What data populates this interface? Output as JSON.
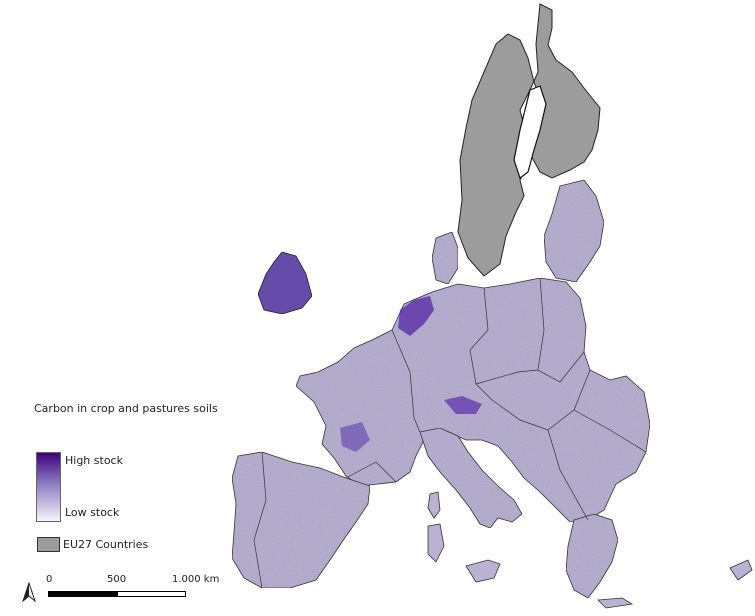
{
  "legend": {
    "title": "Carbon in crop and pastures soils",
    "high_label": "High stock",
    "low_label": "Low stock",
    "countries_label": "EU27 Countries"
  },
  "scale": {
    "tick_0": "0",
    "tick_1": "500",
    "tick_2": "1.000 km"
  },
  "colors": {
    "high_stock": "#3f007d",
    "low_stock": "#f6f4fb",
    "countries_fill": "#9c9c9c",
    "land_base": "#b9b2d3"
  },
  "icons": [
    "north-arrow-icon"
  ]
}
